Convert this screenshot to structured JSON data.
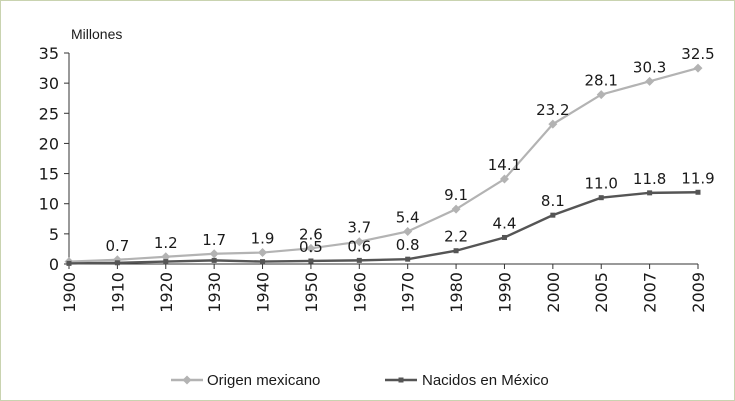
{
  "chart_data": {
    "type": "line",
    "ylabel": "Millones",
    "xlabel": "",
    "title": "",
    "categories": [
      "1900",
      "1910",
      "1920",
      "1930",
      "1940",
      "1950",
      "1960",
      "1970",
      "1980",
      "1990",
      "2000",
      "2005",
      "2007",
      "2009"
    ],
    "ylim": [
      0,
      35
    ],
    "yticks": [
      0,
      5,
      10,
      15,
      20,
      25,
      30,
      35
    ],
    "grid": false,
    "legend": "bottom",
    "series": [
      {
        "name": "Origen mexicano",
        "color": "#b3b3b3",
        "marker": "diamond",
        "values": [
          0.4,
          0.7,
          1.2,
          1.7,
          1.9,
          2.6,
          3.7,
          5.4,
          9.1,
          14.1,
          23.2,
          28.1,
          30.3,
          32.5
        ],
        "labels": [
          "",
          "0.7",
          "1.2",
          "1.7",
          "1.9",
          "2.6",
          "3.7",
          "5.4",
          "9.1",
          "14.1",
          "23.2",
          "28.1",
          "30.3",
          "32.5"
        ]
      },
      {
        "name": "Nacidos en México",
        "color": "#555555",
        "marker": "square",
        "values": [
          0.1,
          0.2,
          0.4,
          0.6,
          0.4,
          0.5,
          0.6,
          0.8,
          2.2,
          4.4,
          8.1,
          11.0,
          11.8,
          11.9
        ],
        "labels": [
          "",
          "",
          "",
          "",
          "",
          "0.5",
          "0.6",
          "0.8",
          "2.2",
          "4.4",
          "8.1",
          "11.0",
          "11.8",
          "11.9"
        ]
      }
    ]
  }
}
